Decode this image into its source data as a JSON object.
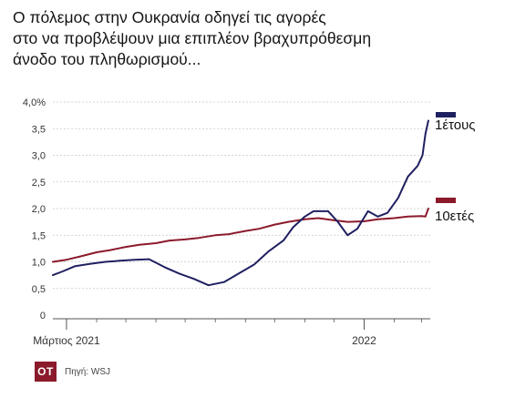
{
  "title_lines": [
    "Ο πόλεμος στην Ουκρανία οδηγεί τις αγορές",
    "στο να προβλέψουν μια επιπλέον βραχυπρόθεσμη",
    "άνοδο του πληθωρισμού..."
  ],
  "footer": {
    "logo_text": "OT",
    "source": "Πηγή: WSJ"
  },
  "colors": {
    "one_year": "#1f2060",
    "ten_year": "#8b1a2b",
    "grid": "#c8c8c8",
    "axis": "#555555"
  },
  "chart_data": {
    "type": "line",
    "title": "",
    "xlabel": "",
    "ylabel": "",
    "ylim": [
      0,
      4.0
    ],
    "yticks": [
      {
        "value": 0,
        "label": "0"
      },
      {
        "value": 0.5,
        "label": "0,5"
      },
      {
        "value": 1.0,
        "label": "1,0"
      },
      {
        "value": 1.5,
        "label": "1,5"
      },
      {
        "value": 2.0,
        "label": "2,0"
      },
      {
        "value": 2.5,
        "label": "2,5"
      },
      {
        "value": 3.0,
        "label": "3,0"
      },
      {
        "value": 3.5,
        "label": "3,5"
      },
      {
        "value": 4.0,
        "label": "4,0%"
      }
    ],
    "xlim": [
      "2021-02-15",
      "2022-03-10"
    ],
    "xticks": [
      {
        "date": "2021-03-01",
        "label": "Μάρτιος 2021"
      },
      {
        "date": "2022-01-01",
        "label": "2022"
      }
    ],
    "grid": true,
    "series": [
      {
        "name": "1έτους",
        "x": [
          "2021-02-15",
          "2021-02-25",
          "2021-03-10",
          "2021-03-25",
          "2021-04-10",
          "2021-04-25",
          "2021-05-10",
          "2021-05-25",
          "2021-06-10",
          "2021-06-25",
          "2021-07-10",
          "2021-07-25",
          "2021-08-10",
          "2021-08-25",
          "2021-09-10",
          "2021-09-25",
          "2021-10-10",
          "2021-10-20",
          "2021-11-01",
          "2021-11-10",
          "2021-11-25",
          "2021-12-05",
          "2021-12-15",
          "2021-12-25",
          "2022-01-05",
          "2022-01-15",
          "2022-01-25",
          "2022-02-05",
          "2022-02-15",
          "2022-02-25",
          "2022-03-02",
          "2022-03-05",
          "2022-03-08"
        ],
        "values": [
          0.75,
          0.82,
          0.92,
          0.96,
          1.0,
          1.02,
          1.04,
          1.05,
          0.9,
          0.78,
          0.68,
          0.56,
          0.62,
          0.78,
          0.95,
          1.2,
          1.4,
          1.65,
          1.85,
          1.95,
          1.95,
          1.75,
          1.5,
          1.62,
          1.95,
          1.85,
          1.92,
          2.2,
          2.6,
          2.8,
          3.0,
          3.4,
          3.65
        ]
      },
      {
        "name": "10ετές",
        "x": [
          "2021-02-15",
          "2021-03-01",
          "2021-03-15",
          "2021-04-01",
          "2021-04-15",
          "2021-05-01",
          "2021-05-15",
          "2021-06-01",
          "2021-06-15",
          "2021-07-01",
          "2021-07-15",
          "2021-08-01",
          "2021-08-15",
          "2021-09-01",
          "2021-09-15",
          "2021-10-01",
          "2021-10-15",
          "2021-11-01",
          "2021-11-15",
          "2021-12-01",
          "2021-12-15",
          "2022-01-01",
          "2022-01-15",
          "2022-02-01",
          "2022-02-15",
          "2022-03-01",
          "2022-03-05",
          "2022-03-08"
        ],
        "values": [
          1.0,
          1.04,
          1.1,
          1.18,
          1.22,
          1.28,
          1.32,
          1.35,
          1.4,
          1.42,
          1.45,
          1.5,
          1.52,
          1.58,
          1.62,
          1.7,
          1.75,
          1.8,
          1.82,
          1.78,
          1.75,
          1.76,
          1.8,
          1.82,
          1.85,
          1.86,
          1.85,
          2.0
        ]
      }
    ]
  }
}
